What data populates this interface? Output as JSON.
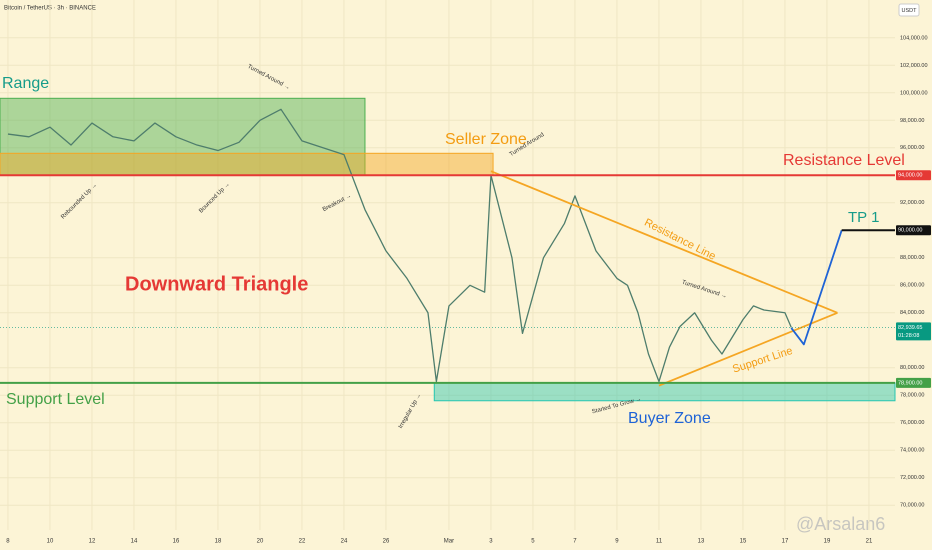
{
  "chart_data": {
    "type": "line",
    "title": "Bitcoin / TetherUS · 3h · BINANCE",
    "currency": "USDT",
    "watermark": "@Arsalan6",
    "xlim": [
      -0.38,
      42.24
    ],
    "ylim": [
      68200,
      106750
    ],
    "grid": true,
    "xticks": [
      {
        "value": 0,
        "label": "8"
      },
      {
        "value": 2,
        "label": "10"
      },
      {
        "value": 4,
        "label": "12"
      },
      {
        "value": 6,
        "label": "14"
      },
      {
        "value": 8,
        "label": "16"
      },
      {
        "value": 10,
        "label": "18"
      },
      {
        "value": 12,
        "label": "20"
      },
      {
        "value": 14,
        "label": "22"
      },
      {
        "value": 16,
        "label": "24"
      },
      {
        "value": 18,
        "label": "26"
      },
      {
        "value": 21,
        "label": "Mar"
      },
      {
        "value": 23,
        "label": "3"
      },
      {
        "value": 25,
        "label": "5"
      },
      {
        "value": 27,
        "label": "7"
      },
      {
        "value": 29,
        "label": "9"
      },
      {
        "value": 31,
        "label": "11"
      },
      {
        "value": 33,
        "label": "13"
      },
      {
        "value": 35,
        "label": "15"
      },
      {
        "value": 37,
        "label": "17"
      },
      {
        "value": 39,
        "label": "19"
      },
      {
        "value": 41,
        "label": "21"
      }
    ],
    "yticks": [
      {
        "value": 70000,
        "label": "70,000.00"
      },
      {
        "value": 72000,
        "label": "72,000.00"
      },
      {
        "value": 74000,
        "label": "74,000.00"
      },
      {
        "value": 76000,
        "label": "76,000.00"
      },
      {
        "value": 78000,
        "label": "78,000.00"
      },
      {
        "value": 80000,
        "label": "80,000.00"
      },
      {
        "value": 84000,
        "label": "84,000.00"
      },
      {
        "value": 86000,
        "label": "86,000.00"
      },
      {
        "value": 88000,
        "label": "88,000.00"
      },
      {
        "value": 92000,
        "label": "92,000.00"
      },
      {
        "value": 96000,
        "label": "96,000.00"
      },
      {
        "value": 98000,
        "label": "98,000.00"
      },
      {
        "value": 100000,
        "label": "100,000.00"
      },
      {
        "value": 102000,
        "label": "102,000.00"
      },
      {
        "value": 104000,
        "label": "104,000.00"
      }
    ],
    "series": [
      {
        "color": "#4e7d6c",
        "x": [
          0,
          1,
          2,
          3,
          4,
          5,
          6,
          7,
          8,
          9,
          10,
          11,
          12,
          13,
          14,
          15,
          16,
          17,
          18,
          19,
          20,
          20.4,
          21,
          22,
          22.7,
          23,
          24,
          24.5,
          25.5,
          26.5,
          27,
          28,
          29,
          29.5,
          30,
          30.5,
          31,
          31.5,
          32,
          32.7,
          33.5,
          34,
          35,
          35.5,
          36,
          37,
          37.3
        ],
        "values": [
          97000,
          96800,
          97500,
          96200,
          97800,
          96800,
          96500,
          97800,
          96800,
          96200,
          95800,
          96400,
          98000,
          98800,
          96500,
          96000,
          95500,
          91500,
          88500,
          86500,
          84000,
          79000,
          84500,
          86000,
          85500,
          94000,
          88000,
          82500,
          88000,
          90500,
          92500,
          88500,
          86500,
          86000,
          84000,
          81000,
          79000,
          81500,
          83000,
          84000,
          82000,
          81000,
          83500,
          84500,
          84200,
          84000,
          82940
        ]
      }
    ],
    "zones": [
      {
        "color": "#4caf50",
        "xlim": [
          -0.38,
          17
        ],
        "ylim": [
          94000,
          99600
        ]
      },
      {
        "color": "#f5a623",
        "xlim": [
          -0.38,
          23.1
        ],
        "ylim": [
          94000,
          95600
        ]
      },
      {
        "color": "#26c6b0",
        "xlim": [
          20.3,
          42.24
        ],
        "ylim": [
          77600,
          78900
        ]
      }
    ],
    "levels": [
      {
        "color": "#e53935",
        "xlim": [
          -0.38,
          42.24
        ],
        "value": 94000,
        "label": "94,000.00"
      },
      {
        "color": "#43a047",
        "xlim": [
          -0.38,
          42.24
        ],
        "value": 78900,
        "label": "78,900.00"
      },
      {
        "color": "#111111",
        "xlim": [
          39.7,
          42.24
        ],
        "value": 90000,
        "label": "90,000.00"
      }
    ],
    "lines": [
      {
        "color": "#f5a623",
        "x": [
          23,
          39.5
        ],
        "values": [
          94300,
          84000
        ]
      },
      {
        "color": "#f5a623",
        "x": [
          31,
          39.5
        ],
        "values": [
          78700,
          84000
        ]
      },
      {
        "color": "#1e63d6",
        "x": [
          37.3,
          37.9,
          39.7
        ],
        "values": [
          82900,
          81700,
          90000
        ]
      }
    ],
    "last_price": {
      "value": 82939.65,
      "label": "82,939.65",
      "countdown": "01:28:08",
      "color": "#089981"
    },
    "annotations": [
      "Range",
      "Seller Zone",
      "Resistance Level",
      "Support Level",
      "Downward Triangle",
      "Resistance Line",
      "Support Line",
      "Buyer Zone",
      "TP 1",
      "Turned Around →",
      "Rebounded Up →",
      "Bounced Up →",
      "Breakout →",
      "Turned Around",
      "Irregular Up →",
      "Started To Grow →",
      "Turned Around →"
    ]
  }
}
